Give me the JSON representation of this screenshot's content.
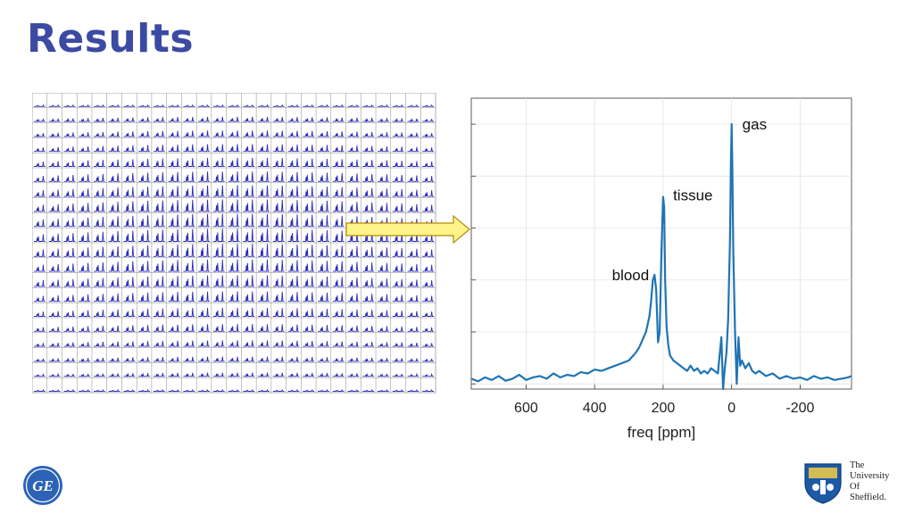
{
  "slide": {
    "title": "Results"
  },
  "spectral_grid": {
    "rows": 20,
    "cols": 27,
    "line_color": "#2b2bb8"
  },
  "logos": {
    "left": {
      "name": "ge-logo",
      "text": "GE",
      "color": "#2c63b6"
    },
    "right": {
      "name": "university-of-sheffield-logo",
      "lines": [
        "The",
        "University",
        "Of",
        "Sheffield."
      ],
      "shield_color": "#1d5aa6"
    }
  },
  "arrow": {
    "fill": "#fff48a",
    "stroke": "#b08a00"
  },
  "chart_data": {
    "type": "line",
    "xlabel": "freq [ppm]",
    "xlim": [
      -350,
      760
    ],
    "x_reversed": true,
    "ylim": [
      0,
      1.0
    ],
    "x_ticks": [
      600,
      400,
      200,
      0,
      -200
    ],
    "x_tick_labels": [
      "600",
      "400",
      "200",
      "0",
      "-200"
    ],
    "grid": true,
    "line_color": "#1f74b4",
    "peaks": [
      {
        "label": "blood",
        "x": 220,
        "y": 0.42
      },
      {
        "label": "tissue",
        "x": 197,
        "y": 0.72
      },
      {
        "label": "gas",
        "x": 0,
        "y": 1.0
      }
    ],
    "series": [
      {
        "x": [
          760,
          740,
          720,
          700,
          680,
          660,
          640,
          620,
          600,
          580,
          560,
          540,
          520,
          500,
          480,
          460,
          440,
          420,
          400,
          380,
          360,
          340,
          320,
          300,
          280,
          270,
          260,
          250,
          240,
          235,
          230,
          225,
          220,
          215,
          210,
          205,
          200,
          197,
          194,
          190,
          185,
          180,
          170,
          160,
          150,
          140,
          130,
          120,
          110,
          100,
          90,
          80,
          70,
          60,
          50,
          40,
          30,
          25,
          20,
          15,
          10,
          5,
          2,
          0,
          -2,
          -5,
          -10,
          -15,
          -20,
          -25,
          -30,
          -40,
          -50,
          -60,
          -70,
          -80,
          -100,
          -120,
          -140,
          -160,
          -180,
          -200,
          -220,
          -240,
          -260,
          -280,
          -300,
          -320,
          -340,
          -350
        ],
        "y": [
          0.02,
          0.01,
          0.025,
          0.015,
          0.03,
          0.012,
          0.02,
          0.035,
          0.015,
          0.025,
          0.03,
          0.02,
          0.04,
          0.025,
          0.035,
          0.03,
          0.045,
          0.04,
          0.055,
          0.05,
          0.06,
          0.07,
          0.08,
          0.09,
          0.12,
          0.14,
          0.17,
          0.2,
          0.26,
          0.32,
          0.4,
          0.42,
          0.36,
          0.16,
          0.2,
          0.5,
          0.72,
          0.68,
          0.4,
          0.22,
          0.15,
          0.11,
          0.09,
          0.08,
          0.07,
          0.06,
          0.05,
          0.07,
          0.05,
          0.06,
          0.04,
          0.05,
          0.04,
          0.06,
          0.05,
          0.04,
          0.18,
          -0.02,
          0.06,
          0.12,
          0.25,
          0.55,
          0.85,
          1.0,
          0.85,
          0.5,
          0.2,
          0.0,
          0.18,
          0.07,
          0.09,
          0.06,
          0.08,
          0.05,
          0.04,
          0.05,
          0.03,
          0.04,
          0.02,
          0.03,
          0.02,
          0.025,
          0.015,
          0.03,
          0.02,
          0.025,
          0.015,
          0.02,
          0.025,
          0.03
        ]
      }
    ]
  }
}
